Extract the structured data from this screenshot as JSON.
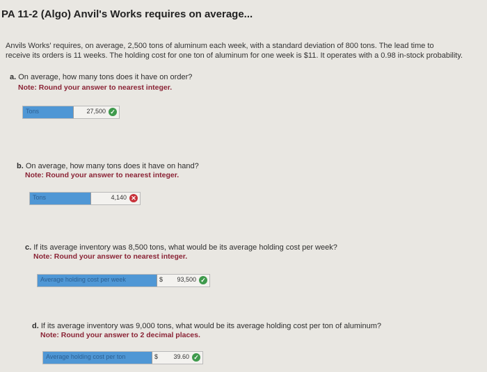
{
  "title": "PA 11-2 (Algo) Anvil's Works requires on average...",
  "problem": {
    "line1": "Anvils Works' requires, on average, 2,500 tons of aluminum each week, with a standard deviation of 800 tons. The lead time to",
    "line2": "receive its orders is 11 weeks. The holding cost for one ton of aluminum for one week is $11. It operates with a 0.98 in-stock probability."
  },
  "parts": [
    {
      "letter": "a.",
      "question": "On average, how many tons does it have on order?",
      "note": "Note: Round your answer to nearest integer.",
      "label": "Tons",
      "currency": "",
      "value": "27,500",
      "status": "correct"
    },
    {
      "letter": "b.",
      "question": "On average, how many tons does it have on hand?",
      "note": "Note: Round your answer to nearest integer.",
      "label": "Tons",
      "currency": "",
      "value": "4,140",
      "status": "incorrect"
    },
    {
      "letter": "c.",
      "question": "If its average inventory was 8,500 tons, what would be its average holding cost per week?",
      "note": "Note: Round your answer to nearest integer.",
      "label": "Average holding cost per week",
      "currency": "$",
      "value": "93,500",
      "status": "correct"
    },
    {
      "letter": "d.",
      "question": "If its average inventory was 9,000 tons, what would be its average holding cost per ton of aluminum?",
      "note": "Note: Round your answer to 2 decimal places.",
      "label": "Average holding cost per ton",
      "currency": "$",
      "value": "39.60",
      "status": "correct"
    }
  ],
  "icons": {
    "correct": "check-circle-icon",
    "incorrect": "x-circle-icon"
  },
  "colors": {
    "correct": "#3e9a4c",
    "incorrect": "#c8323a",
    "label_bg": "#4f97d5",
    "note": "#8a2335"
  }
}
